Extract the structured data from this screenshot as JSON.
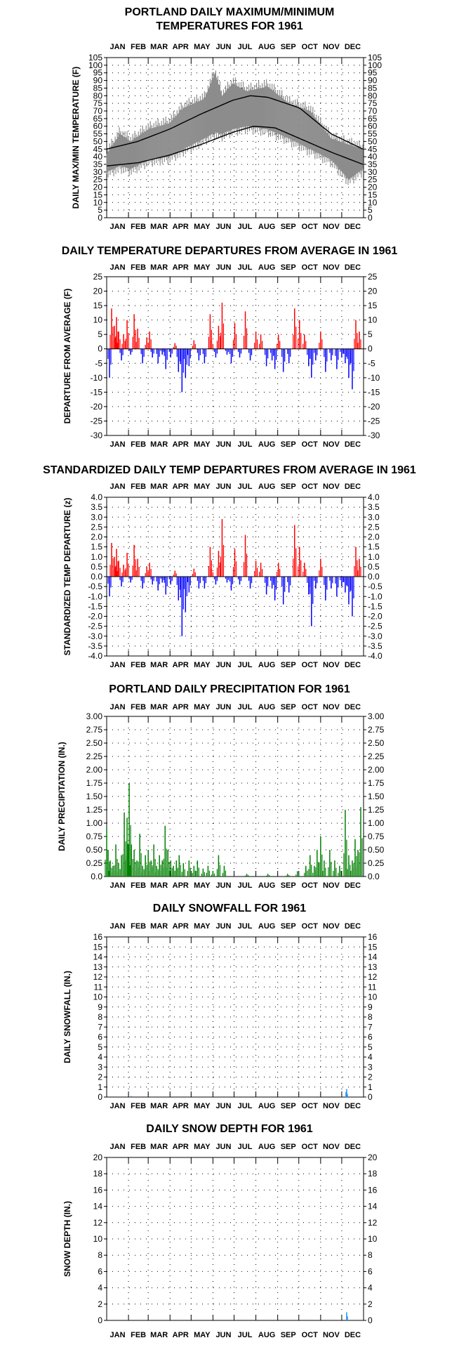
{
  "charts": [
    {
      "id": "temp",
      "type": "line",
      "title_lines": [
        "PORTLAND DAILY MAXIMUM/MINIMUM",
        "TEMPERATURES FOR 1961"
      ],
      "ylabel": "DAILY MAX/MIN TEMPERATURE (F)",
      "months": [
        "JAN",
        "FEB",
        "MAR",
        "APR",
        "MAY",
        "JUN",
        "JUL",
        "AUG",
        "SEP",
        "OCT",
        "NOV",
        "DEC"
      ],
      "ylim": [
        0,
        105
      ],
      "yticks": [
        "0",
        "5",
        "10",
        "15",
        "20",
        "25",
        "30",
        "35",
        "40",
        "45",
        "50",
        "55",
        "60",
        "65",
        "70",
        "75",
        "80",
        "85",
        "90",
        "95",
        "100",
        "105"
      ],
      "normal_high": {
        "days": [
          1,
          45,
          90,
          135,
          180,
          205,
          230,
          275,
          320,
          365
        ],
        "values": [
          45,
          50,
          58,
          68,
          77,
          80,
          79,
          72,
          55,
          45
        ]
      },
      "normal_low": {
        "days": [
          1,
          45,
          90,
          135,
          180,
          210,
          240,
          280,
          320,
          365
        ],
        "values": [
          34,
          36,
          41,
          48,
          56,
          60,
          59,
          51,
          43,
          35
        ]
      },
      "actual_high": {
        "days": [
          1,
          20,
          35,
          60,
          90,
          110,
          140,
          155,
          165,
          180,
          200,
          230,
          260,
          290,
          320,
          345,
          365
        ],
        "values": [
          42,
          55,
          50,
          58,
          62,
          72,
          78,
          95,
          80,
          88,
          83,
          86,
          75,
          70,
          52,
          48,
          45
        ]
      },
      "actual_low": {
        "days": [
          1,
          20,
          35,
          60,
          90,
          110,
          140,
          155,
          165,
          180,
          200,
          230,
          260,
          290,
          320,
          345,
          365
        ],
        "values": [
          30,
          34,
          32,
          38,
          40,
          45,
          52,
          56,
          55,
          58,
          60,
          58,
          52,
          45,
          38,
          25,
          32
        ]
      },
      "colors": {
        "band": "#8c8c8c",
        "normal": "#000000"
      }
    },
    {
      "id": "dep",
      "type": "bar",
      "title_lines": [
        "DAILY TEMPERATURE DEPARTURES FROM AVERAGE IN 1961"
      ],
      "ylabel": "DEPARTURE FROM AVERAGE (F)",
      "months": [
        "JAN",
        "FEB",
        "MAR",
        "APR",
        "MAY",
        "JUN",
        "JUL",
        "AUG",
        "SEP",
        "OCT",
        "NOV",
        "DEC"
      ],
      "ylim": [
        -30,
        25
      ],
      "yticks": [
        "-30",
        "-25",
        "-20",
        "-15",
        "-10",
        "-5",
        "0",
        "5",
        "10",
        "15",
        "20",
        "25"
      ],
      "days": [
        5,
        8,
        12,
        15,
        18,
        22,
        25,
        30,
        35,
        40,
        45,
        52,
        58,
        62,
        66,
        74,
        80,
        85,
        92,
        98,
        103,
        108,
        113,
        118,
        125,
        132,
        140,
        148,
        150,
        156,
        160,
        165,
        172,
        178,
        183,
        190,
        198,
        205,
        213,
        220,
        228,
        236,
        240,
        245,
        252,
        260,
        268,
        275,
        282,
        288,
        292,
        298,
        305,
        312,
        320,
        328,
        335,
        340,
        345,
        350,
        355,
        360
      ],
      "values": [
        -10,
        14,
        8,
        11,
        6,
        -4,
        5,
        10,
        -2,
        12,
        7,
        -5,
        4,
        6,
        -3,
        -5,
        -2,
        -7,
        -3,
        2,
        -8,
        -15,
        -10,
        -6,
        3,
        -4,
        -5,
        12,
        3,
        -3,
        8,
        16,
        -2,
        -5,
        9,
        -3,
        13,
        -4,
        6,
        5,
        -6,
        -4,
        -7,
        5,
        -8,
        -5,
        14,
        10,
        5,
        -6,
        -10,
        -4,
        6,
        -8,
        -4,
        -7,
        -3,
        -5,
        -10,
        -14,
        10,
        6
      ],
      "colors": {
        "positive": "#ff0000",
        "negative": "#0000ff"
      }
    },
    {
      "id": "std",
      "type": "bar",
      "title_lines": [
        "STANDARDIZED DAILY TEMP DEPARTURES FROM AVERAGE IN 1961"
      ],
      "ylabel": "STANDARDIZED TEMP DEPARTURE (z)",
      "months": [
        "JAN",
        "FEB",
        "MAR",
        "APR",
        "MAY",
        "JUN",
        "JUL",
        "AUG",
        "SEP",
        "OCT",
        "NOV",
        "DEC"
      ],
      "ylim": [
        -4,
        4
      ],
      "yticks": [
        "-4.0",
        "-3.5",
        "-3.0",
        "-2.5",
        "-2.0",
        "-1.5",
        "-1.0",
        "-0.5",
        "0.0",
        "0.5",
        "1.0",
        "1.5",
        "2.0",
        "2.5",
        "3.0",
        "3.5",
        "4.0"
      ],
      "days": [
        5,
        8,
        12,
        15,
        18,
        22,
        25,
        30,
        35,
        40,
        45,
        52,
        58,
        62,
        66,
        74,
        80,
        85,
        92,
        98,
        103,
        108,
        113,
        118,
        125,
        132,
        140,
        148,
        150,
        156,
        160,
        165,
        172,
        178,
        183,
        190,
        198,
        205,
        213,
        220,
        228,
        236,
        240,
        245,
        252,
        260,
        268,
        275,
        282,
        288,
        292,
        298,
        305,
        312,
        320,
        328,
        335,
        340,
        345,
        350,
        355,
        360
      ],
      "values": [
        -1.0,
        1.7,
        1.0,
        1.4,
        0.8,
        -0.5,
        0.6,
        1.2,
        -0.3,
        1.6,
        0.9,
        -0.6,
        0.5,
        0.7,
        -0.4,
        -0.7,
        -0.3,
        -0.9,
        -0.4,
        0.3,
        -1.2,
        -3.0,
        -1.8,
        -0.8,
        0.4,
        -0.6,
        -0.6,
        1.5,
        0.4,
        -0.4,
        1.3,
        2.9,
        -0.3,
        -0.7,
        1.4,
        -0.4,
        2.1,
        -0.6,
        0.8,
        0.7,
        -0.9,
        -0.6,
        -1.2,
        0.7,
        -1.4,
        -0.8,
        2.6,
        1.5,
        0.7,
        -0.9,
        -2.5,
        -0.6,
        0.9,
        -1.2,
        -0.6,
        -1.0,
        -0.5,
        -0.8,
        -1.4,
        -2.0,
        1.5,
        0.9
      ],
      "colors": {
        "positive": "#ff0000",
        "negative": "#0000ff"
      }
    },
    {
      "id": "precip",
      "type": "bar",
      "title_lines": [
        "PORTLAND DAILY PRECIPITATION FOR 1961"
      ],
      "ylabel": "DAILY PRECIPITATION (IN.)",
      "months": [
        "JAN",
        "FEB",
        "MAR",
        "APR",
        "MAY",
        "JUN",
        "JUL",
        "AUG",
        "SEP",
        "OCT",
        "NOV",
        "DEC"
      ],
      "ylim": [
        0,
        3
      ],
      "yticks": [
        "0.0",
        "0.25",
        "0.50",
        "0.75",
        "1.00",
        "1.25",
        "1.50",
        "1.75",
        "2.00",
        "2.25",
        "2.50",
        "2.75",
        "3.00"
      ],
      "days": [
        1,
        3,
        6,
        10,
        14,
        18,
        22,
        26,
        28,
        30,
        33,
        36,
        40,
        44,
        48,
        52,
        56,
        60,
        64,
        68,
        72,
        76,
        80,
        84,
        88,
        92,
        96,
        100,
        104,
        110,
        118,
        125,
        130,
        138,
        145,
        152,
        160,
        168,
        200,
        230,
        258,
        272,
        284,
        290,
        296,
        300,
        305,
        310,
        318,
        325,
        332,
        340,
        345,
        350,
        354,
        358,
        362
      ],
      "values": [
        0.9,
        0.5,
        0.3,
        0.2,
        0.6,
        0.25,
        0.4,
        1.2,
        0.3,
        1.1,
        1.75,
        0.6,
        0.5,
        0.3,
        0.8,
        0.2,
        0.4,
        0.5,
        0.3,
        0.6,
        0.2,
        0.4,
        0.3,
        0.95,
        0.5,
        0.3,
        0.2,
        0.3,
        0.4,
        0.25,
        0.3,
        0.2,
        0.3,
        0.15,
        0.2,
        0.1,
        0.4,
        0.2,
        0.05,
        0.05,
        0.05,
        0.1,
        0.2,
        0.4,
        0.2,
        0.5,
        0.75,
        0.3,
        0.5,
        0.3,
        0.2,
        1.25,
        0.4,
        0.3,
        0.7,
        0.5,
        1.3
      ],
      "colors": {
        "bar": "#008000"
      }
    },
    {
      "id": "snow",
      "type": "bar",
      "title_lines": [
        "DAILY SNOWFALL FOR 1961"
      ],
      "ylabel": "DAILY SNOWFALL (IN.)",
      "months": [
        "JAN",
        "FEB",
        "MAR",
        "APR",
        "MAY",
        "JUN",
        "JUL",
        "AUG",
        "SEP",
        "OCT",
        "NOV",
        "DEC"
      ],
      "ylim": [
        0,
        16
      ],
      "yticks": [
        "0",
        "1",
        "2",
        "3",
        "4",
        "5",
        "6",
        "7",
        "8",
        "9",
        "10",
        "11",
        "12",
        "13",
        "14",
        "15",
        "16"
      ],
      "days": [
        36,
        341,
        342,
        343
      ],
      "values": [
        0.1,
        0.5,
        0.8,
        0.3
      ],
      "colors": {
        "bar": "#1e90ff"
      }
    },
    {
      "id": "depth",
      "type": "bar",
      "title_lines": [
        "DAILY SNOW DEPTH FOR 1961"
      ],
      "ylabel": "SNOW DEPTH (IN.)",
      "months": [
        "JAN",
        "FEB",
        "MAR",
        "APR",
        "MAY",
        "JUN",
        "JUL",
        "AUG",
        "SEP",
        "OCT",
        "NOV",
        "DEC"
      ],
      "ylim": [
        0,
        20
      ],
      "yticks": [
        "0",
        "2",
        "4",
        "6",
        "8",
        "10",
        "12",
        "14",
        "16",
        "18",
        "20"
      ],
      "days": [
        342,
        343
      ],
      "values": [
        1.0,
        0.5
      ],
      "colors": {
        "bar": "#1e90ff"
      }
    }
  ]
}
